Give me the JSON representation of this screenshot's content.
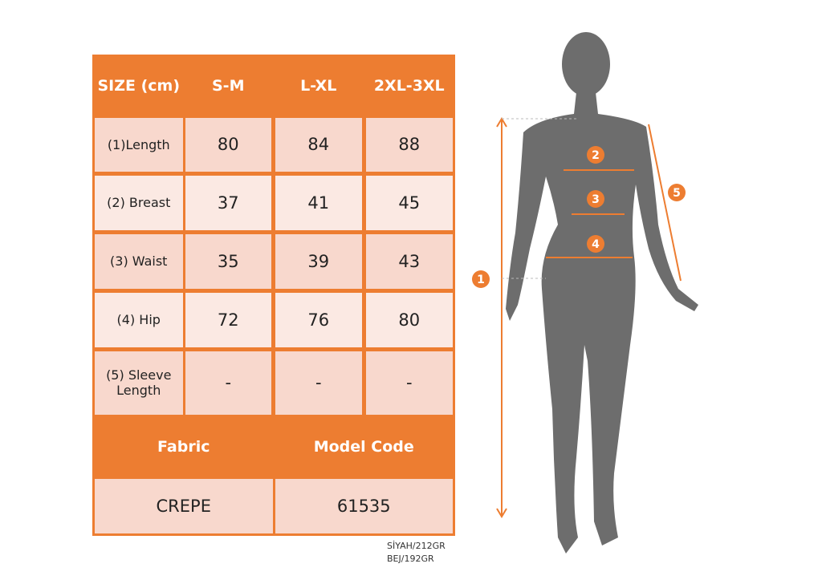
{
  "table": {
    "headers": [
      "SIZE (cm)",
      "S-M",
      "L-XL",
      "2XL-3XL"
    ],
    "rows": [
      {
        "label": "(1)Length",
        "values": [
          "80",
          "84",
          "88"
        ]
      },
      {
        "label": "(2) Breast",
        "values": [
          "37",
          "41",
          "45"
        ]
      },
      {
        "label": "(3) Waist",
        "values": [
          "35",
          "39",
          "43"
        ]
      },
      {
        "label": "(4) Hip",
        "values": [
          "72",
          "76",
          "80"
        ]
      },
      {
        "label": "(5) Sleeve Length",
        "values": [
          "-",
          "-",
          "-"
        ]
      }
    ],
    "fabric_label": "Fabric",
    "model_code_label": "Model Code",
    "fabric": "CREPE",
    "model_code": "61535"
  },
  "notes": [
    "SİYAH/212GR",
    "BEJ/192GR"
  ],
  "figure": {
    "markers": [
      "1",
      "2",
      "3",
      "4",
      "5"
    ]
  },
  "colors": {
    "accent": "#ed7d31",
    "row_dark": "#f8d8cd",
    "row_light": "#fbe9e3",
    "silhouette": "#6d6d6d"
  }
}
